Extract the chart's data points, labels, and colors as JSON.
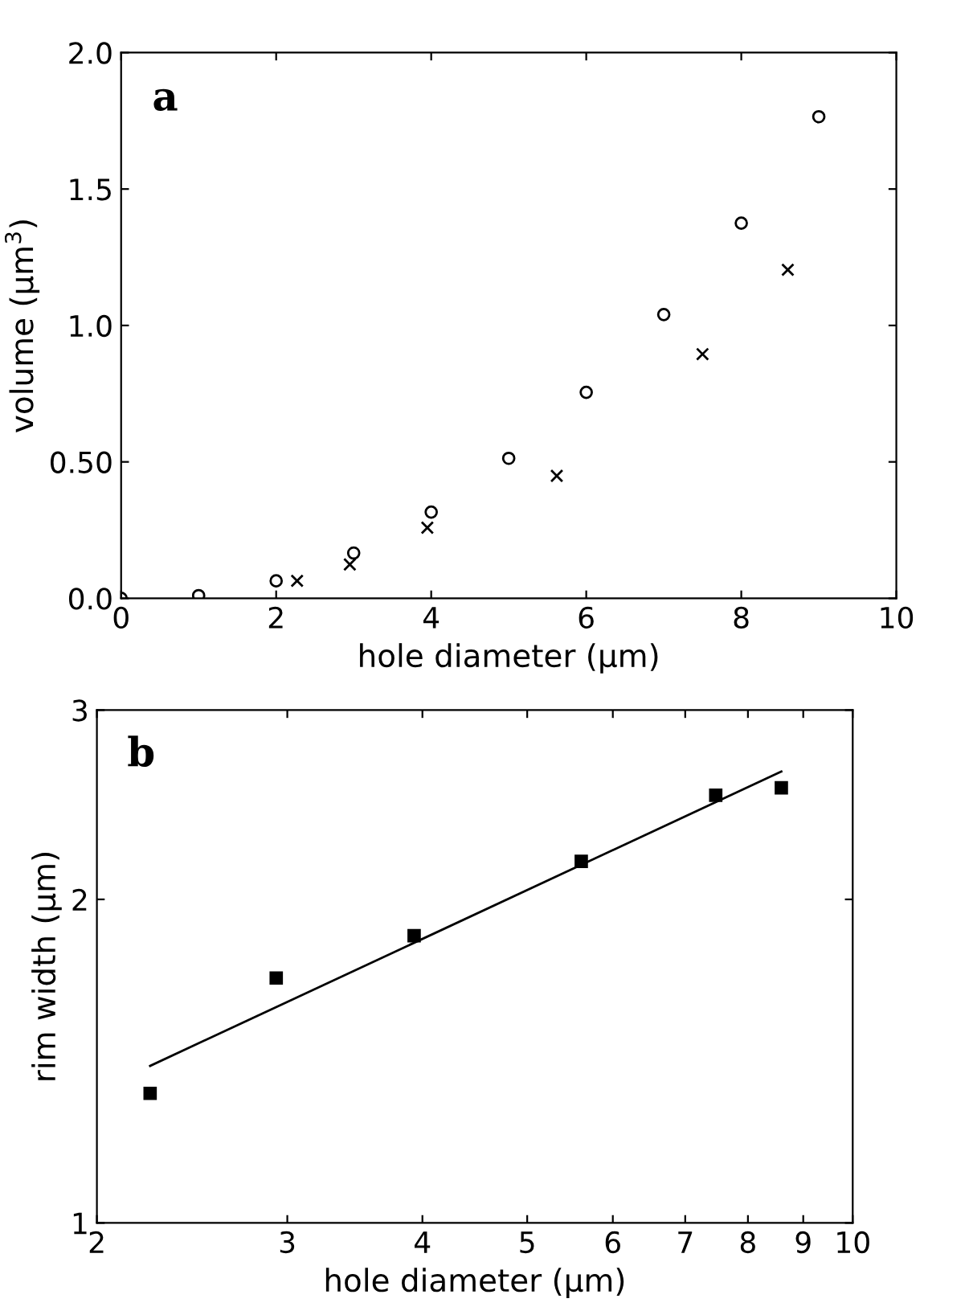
{
  "chart_data": [
    {
      "type": "scatter",
      "title": "a",
      "xlabel": "hole diameter (μm)",
      "ylabel": "volume (μm$^{3}$)",
      "xlim": [
        0,
        10
      ],
      "ylim": [
        0,
        2.0
      ],
      "xticks": [
        0,
        2,
        4,
        6,
        8,
        10
      ],
      "yticks": [
        {
          "value": 0,
          "label": "0.0"
        },
        {
          "value": 0.5,
          "label": "0.50"
        },
        {
          "value": 1.0,
          "label": "1.0"
        },
        {
          "value": 1.5,
          "label": "1.5"
        },
        {
          "value": 2.0,
          "label": "2.0"
        }
      ],
      "grid": false,
      "legend": false,
      "series": [
        {
          "color": "#000000",
          "marker": "circle",
          "x": [
            0,
            1,
            2,
            3,
            4,
            5,
            6,
            7,
            8,
            9
          ],
          "values": [
            0,
            0.01,
            0.064,
            0.166,
            0.316,
            0.513,
            0.755,
            1.04,
            1.375,
            1.765
          ]
        },
        {
          "color": "#000000",
          "marker": "cross",
          "x": [
            2.27,
            2.95,
            3.95,
            5.62,
            7.5,
            8.6
          ],
          "values": [
            0.064,
            0.124,
            0.259,
            0.449,
            0.895,
            1.204
          ]
        }
      ]
    },
    {
      "type": "scatter",
      "title": "b",
      "xlabel": "hole diameter (μm)",
      "ylabel": "rim width (μm)",
      "log": "xy",
      "xlim": [
        2,
        10
      ],
      "ylim": [
        1,
        3
      ],
      "xticks": [
        2,
        3,
        4,
        5,
        6,
        7,
        8,
        9,
        10
      ],
      "yticks": [
        1,
        2,
        3
      ],
      "grid": false,
      "legend": false,
      "series": [
        {
          "color": "#000000",
          "marker": "square",
          "x": [
            2.24,
            2.93,
            3.93,
            5.61,
            7.47,
            8.59
          ],
          "values": [
            1.32,
            1.69,
            1.85,
            2.17,
            2.5,
            2.54
          ]
        },
        {
          "type": "line",
          "color": "#000000",
          "marker": "none",
          "x": [
            2.24,
            8.59
          ],
          "values": [
            1.4,
            2.63
          ]
        }
      ]
    }
  ]
}
